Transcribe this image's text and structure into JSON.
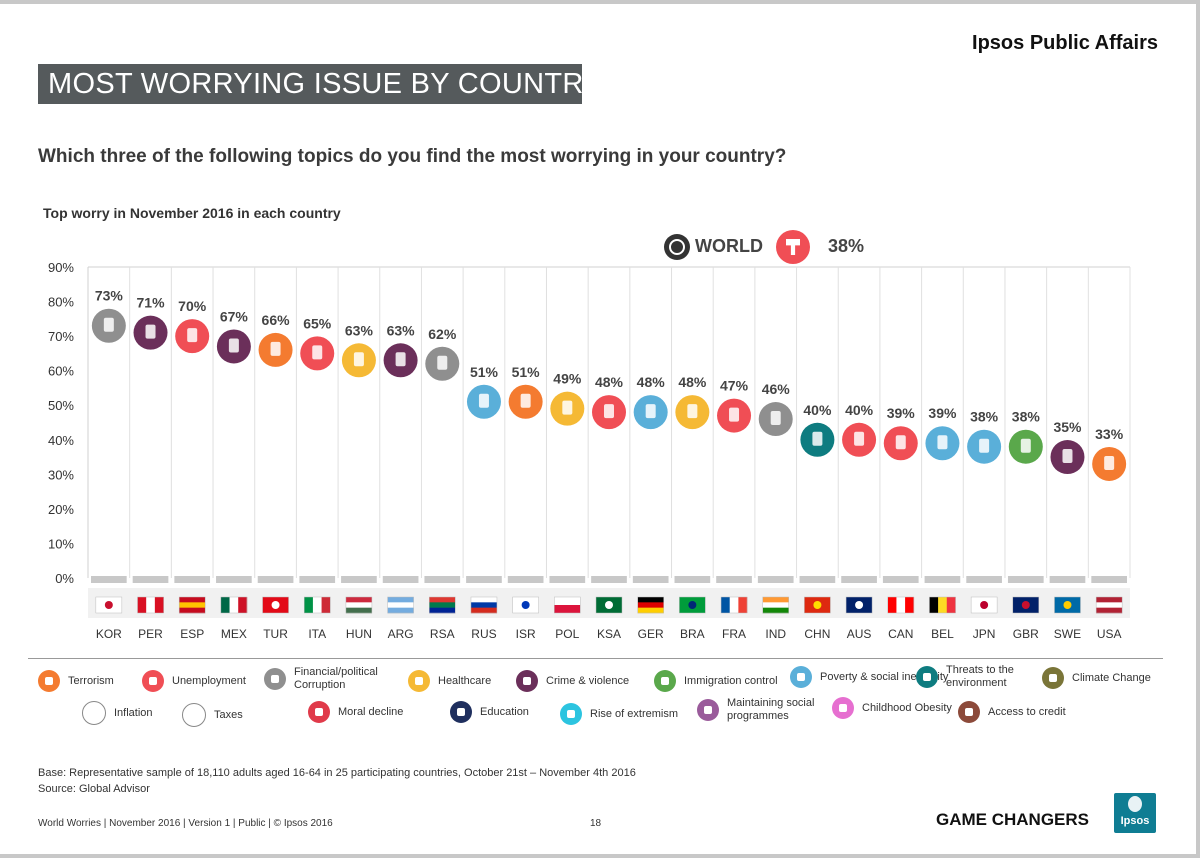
{
  "header": {
    "brand": "Ipsos Public Affairs",
    "title": "MOST WORRYING ISSUE BY COUNTRY"
  },
  "question": "Which three of the following topics do you find the most worrying in your country?",
  "subtitle": "Top worry in November 2016 in each country",
  "world": {
    "label": "WORLD",
    "value": "38%",
    "issue": "Unemployment"
  },
  "chart_data": {
    "type": "scatter",
    "ylim": [
      0,
      90
    ],
    "y_ticks": [
      "0%",
      "10%",
      "20%",
      "30%",
      "40%",
      "50%",
      "60%",
      "70%",
      "80%",
      "90%"
    ],
    "grid": true,
    "categories": [
      "KOR",
      "PER",
      "ESP",
      "MEX",
      "TUR",
      "ITA",
      "HUN",
      "ARG",
      "RSA",
      "RUS",
      "ISR",
      "POL",
      "KSA",
      "GER",
      "BRA",
      "FRA",
      "IND",
      "CHN",
      "AUS",
      "CAN",
      "BEL",
      "JPN",
      "GBR",
      "SWE",
      "USA"
    ],
    "values": [
      73,
      71,
      70,
      67,
      66,
      65,
      63,
      63,
      62,
      51,
      51,
      49,
      48,
      48,
      48,
      47,
      46,
      40,
      40,
      39,
      39,
      38,
      38,
      35,
      33
    ],
    "labels": [
      "73%",
      "71%",
      "70%",
      "67%",
      "66%",
      "65%",
      "63%",
      "63%",
      "62%",
      "51%",
      "51%",
      "49%",
      "48%",
      "48%",
      "48%",
      "47%",
      "46%",
      "40%",
      "40%",
      "39%",
      "39%",
      "38%",
      "38%",
      "35%",
      "33%"
    ],
    "issues": [
      "Financial/political Corruption",
      "Crime & violence",
      "Unemployment",
      "Crime & violence",
      "Terrorism",
      "Unemployment",
      "Healthcare",
      "Crime & violence",
      "Financial/political Corruption",
      "Poverty & social inequality",
      "Terrorism",
      "Healthcare",
      "Unemployment",
      "Poverty & social inequality",
      "Healthcare",
      "Unemployment",
      "Financial/political Corruption",
      "Threats to the environment",
      "Unemployment",
      "Unemployment",
      "Poverty & social inequality",
      "Poverty & social inequality",
      "Immigration control",
      "Crime & violence",
      "Terrorism"
    ]
  },
  "issue_colors": {
    "Terrorism": "#f47b30",
    "Unemployment": "#f04e55",
    "Financial/political Corruption": "#8f8f8f",
    "Healthcare": "#f5b935",
    "Crime & violence": "#6b2f5a",
    "Immigration control": "#5aa84b",
    "Poverty & social inequality": "#5aafd9",
    "Threats to the environment": "#0e7c80",
    "Climate Change": "#7a7538",
    "Inflation": "#ffffff",
    "Taxes": "#ffffff",
    "Moral decline": "#e03a4a",
    "Education": "#1f2f5e",
    "Rise of extremism": "#2cc4e0",
    "Maintaining social programmes": "#9a5b9b",
    "Childhood Obesity": "#e66fd0",
    "Access to credit": "#8c4a3a"
  },
  "flags": [
    {
      "code": "KOR",
      "colors": [
        "#ffffff",
        "#ffffff",
        "#ffffff"
      ],
      "emblem": "#c8102e"
    },
    {
      "code": "PER",
      "colors": [
        "#d91023",
        "#ffffff",
        "#d91023"
      ],
      "dir": "v"
    },
    {
      "code": "ESP",
      "colors": [
        "#c60b1e",
        "#ffc400",
        "#c60b1e"
      ],
      "dir": "h"
    },
    {
      "code": "MEX",
      "colors": [
        "#006847",
        "#ffffff",
        "#ce1126"
      ],
      "dir": "v"
    },
    {
      "code": "TUR",
      "colors": [
        "#e30a17",
        "#e30a17",
        "#e30a17"
      ],
      "emblem": "#ffffff"
    },
    {
      "code": "ITA",
      "colors": [
        "#009246",
        "#ffffff",
        "#ce2b37"
      ],
      "dir": "v"
    },
    {
      "code": "HUN",
      "colors": [
        "#cd2a3e",
        "#ffffff",
        "#436f4d"
      ],
      "dir": "h"
    },
    {
      "code": "ARG",
      "colors": [
        "#74acdf",
        "#ffffff",
        "#74acdf"
      ],
      "dir": "h"
    },
    {
      "code": "RSA",
      "colors": [
        "#de3831",
        "#007a4d",
        "#002395"
      ],
      "dir": "h"
    },
    {
      "code": "RUS",
      "colors": [
        "#ffffff",
        "#0039a6",
        "#d52b1e"
      ],
      "dir": "h"
    },
    {
      "code": "ISR",
      "colors": [
        "#ffffff",
        "#ffffff",
        "#ffffff"
      ],
      "emblem": "#0038b8"
    },
    {
      "code": "POL",
      "colors": [
        "#ffffff",
        "#dc143c",
        "#dc143c"
      ],
      "dir": "h2"
    },
    {
      "code": "KSA",
      "colors": [
        "#006c35",
        "#006c35",
        "#006c35"
      ],
      "emblem": "#ffffff"
    },
    {
      "code": "GER",
      "colors": [
        "#000000",
        "#dd0000",
        "#ffce00"
      ],
      "dir": "h"
    },
    {
      "code": "BRA",
      "colors": [
        "#009c3b",
        "#ffdf00",
        "#009c3b"
      ],
      "emblem": "#002776"
    },
    {
      "code": "FRA",
      "colors": [
        "#0055a4",
        "#ffffff",
        "#ef4135"
      ],
      "dir": "v"
    },
    {
      "code": "IND",
      "colors": [
        "#ff9933",
        "#ffffff",
        "#138808"
      ],
      "dir": "h"
    },
    {
      "code": "CHN",
      "colors": [
        "#de2910",
        "#de2910",
        "#de2910"
      ],
      "emblem": "#ffde00"
    },
    {
      "code": "AUS",
      "colors": [
        "#012169",
        "#012169",
        "#012169"
      ],
      "emblem": "#ffffff"
    },
    {
      "code": "CAN",
      "colors": [
        "#ff0000",
        "#ffffff",
        "#ff0000"
      ],
      "dir": "v"
    },
    {
      "code": "BEL",
      "colors": [
        "#000000",
        "#fdda24",
        "#ef3340"
      ],
      "dir": "v"
    },
    {
      "code": "JPN",
      "colors": [
        "#ffffff",
        "#ffffff",
        "#ffffff"
      ],
      "emblem": "#bc002d"
    },
    {
      "code": "GBR",
      "colors": [
        "#012169",
        "#012169",
        "#012169"
      ],
      "emblem": "#c8102e"
    },
    {
      "code": "SWE",
      "colors": [
        "#006aa7",
        "#006aa7",
        "#006aa7"
      ],
      "emblem": "#fecc00"
    },
    {
      "code": "USA",
      "colors": [
        "#b22234",
        "#ffffff",
        "#b22234"
      ],
      "dir": "h"
    }
  ],
  "legend": [
    {
      "label": "Terrorism",
      "issue": "Terrorism",
      "icon": "terrorism-icon"
    },
    {
      "label": "Unemployment",
      "issue": "Unemployment",
      "icon": "unemployment-icon"
    },
    {
      "label": "Financial/political Corruption",
      "issue": "Financial/political Corruption",
      "icon": "money-bag-icon"
    },
    {
      "label": "Healthcare",
      "issue": "Healthcare",
      "icon": "nurse-cap-icon"
    },
    {
      "label": "Crime & violence",
      "issue": "Crime & violence",
      "icon": "gun-icon"
    },
    {
      "label": "Immigration control",
      "issue": "Immigration control",
      "icon": "suitcase-icon"
    },
    {
      "label": "Poverty & social inequality",
      "issue": "Poverty & social inequality",
      "icon": "person-icon"
    },
    {
      "label": "Threats to the environment",
      "issue": "Threats to the environment",
      "icon": "environment-icon"
    },
    {
      "label": "Climate Change",
      "issue": "Climate Change",
      "icon": "climate-icon"
    },
    {
      "label": "Inflation",
      "issue": "Inflation",
      "icon": "inflation-chart-icon"
    },
    {
      "label": "Taxes",
      "issue": "Taxes",
      "icon": "taxes-icon"
    },
    {
      "label": "Moral decline",
      "issue": "Moral decline",
      "icon": "moral-decline-icon"
    },
    {
      "label": "Education",
      "issue": "Education",
      "icon": "graduation-cap-icon"
    },
    {
      "label": "Rise of extremism",
      "issue": "Rise of extremism",
      "icon": "extremism-icon"
    },
    {
      "label": "Maintaining social programmes",
      "issue": "Maintaining social programmes",
      "icon": "social-programmes-icon"
    },
    {
      "label": "Childhood Obesity",
      "issue": "Childhood Obesity",
      "icon": "obesity-icon"
    },
    {
      "label": "Access to credit",
      "issue": "Access to credit",
      "icon": "credit-icon"
    }
  ],
  "footer": {
    "base": "Base: Representative sample of 18,110 adults aged 16-64 in 25 participating countries, October 21st – November 4th 2016",
    "source": "Source: Global Advisor",
    "doc": "World Worries | November 2016 | Version 1 | Public | © Ipsos 2016",
    "page": "18",
    "tagline": "GAME CHANGERS",
    "logo": "Ipsos"
  }
}
